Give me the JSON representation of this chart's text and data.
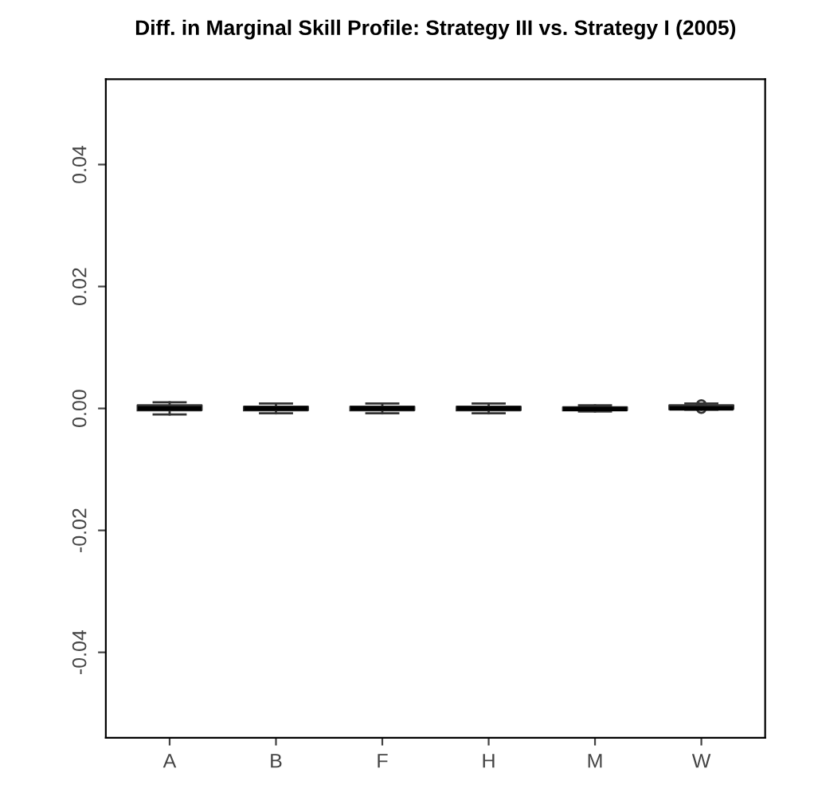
{
  "chart_data": {
    "type": "box",
    "title": "Diff. in Marginal Skill Profile: Strategy III vs. Strategy I (2005)",
    "categories": [
      "A",
      "B",
      "F",
      "H",
      "M",
      "W"
    ],
    "boxes": [
      {
        "low": -0.001,
        "q1": -0.0003,
        "median": 0.0,
        "q3": 0.0005,
        "high": 0.001
      },
      {
        "low": -0.0008,
        "q1": -0.0003,
        "median": 0.0,
        "q3": 0.0003,
        "high": 0.0008
      },
      {
        "low": -0.0008,
        "q1": -0.0003,
        "median": 0.0,
        "q3": 0.0003,
        "high": 0.0008
      },
      {
        "low": -0.0008,
        "q1": -0.0003,
        "median": 0.0,
        "q3": 0.0003,
        "high": 0.0008
      },
      {
        "low": -0.0005,
        "q1": -0.0003,
        "median": -0.0001,
        "q3": 0.0002,
        "high": 0.0005
      },
      {
        "low": -0.0002,
        "q1": -0.0001,
        "median": 0.0,
        "q3": 0.0005,
        "high": 0.0008,
        "outliers": [
          0.0,
          0.0006
        ]
      }
    ],
    "ylim": [
      -0.054,
      0.054
    ],
    "yticks": [
      {
        "value": -0.04,
        "label": "-0.04"
      },
      {
        "value": -0.02,
        "label": "-0.02"
      },
      {
        "value": 0.0,
        "label": "0.00"
      },
      {
        "value": 0.02,
        "label": "0.02"
      },
      {
        "value": 0.04,
        "label": "0.04"
      }
    ],
    "grid": false
  }
}
